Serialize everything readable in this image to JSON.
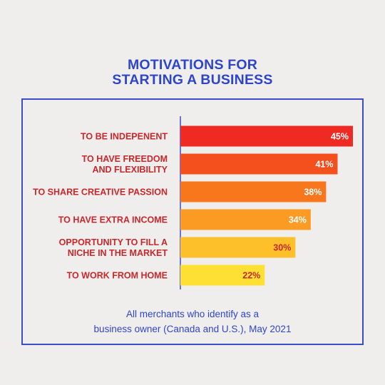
{
  "title_lines": [
    "MOTIVATIONS FOR",
    "STARTING A BUSINESS"
  ],
  "note_lines": [
    "All merchants who identify as a",
    "business owner (Canada and U.S.), May 2021"
  ],
  "colors": {
    "title": "#2f45c8",
    "category_label": "#c8282c",
    "frame": "#3a4cc9",
    "divider": "#3a4cc9",
    "background": "#efeeec"
  },
  "chart_data": {
    "type": "bar",
    "orientation": "horizontal",
    "title": "MOTIVATIONS FOR STARTING A BUSINESS",
    "categories": [
      [
        "TO BE INDEPENENT"
      ],
      [
        "TO HAVE FREEDOM",
        "AND FLEXIBILITY"
      ],
      [
        "TO SHARE CREATIVE PASSION"
      ],
      [
        "TO HAVE EXTRA INCOME"
      ],
      [
        "OPPORTUNITY TO FILL A",
        "NICHE IN THE MARKET"
      ],
      [
        "TO WORK FROM HOME"
      ]
    ],
    "values": [
      45,
      41,
      38,
      34,
      30,
      22
    ],
    "value_labels": [
      "45%",
      "41%",
      "38%",
      "34%",
      "30%",
      "22%"
    ],
    "unit": "%",
    "bar_colors": [
      "#ee2a22",
      "#f4501d",
      "#f8761c",
      "#fb9b23",
      "#fdc02b",
      "#fde033"
    ],
    "label_colors": [
      "#ffffff",
      "#ffffff",
      "#ffffff",
      "#ffffff",
      "#c8282c",
      "#c8282c"
    ],
    "xlim": [
      0,
      45
    ],
    "grid": false,
    "legend": "none",
    "xlabel": "",
    "ylabel": ""
  }
}
